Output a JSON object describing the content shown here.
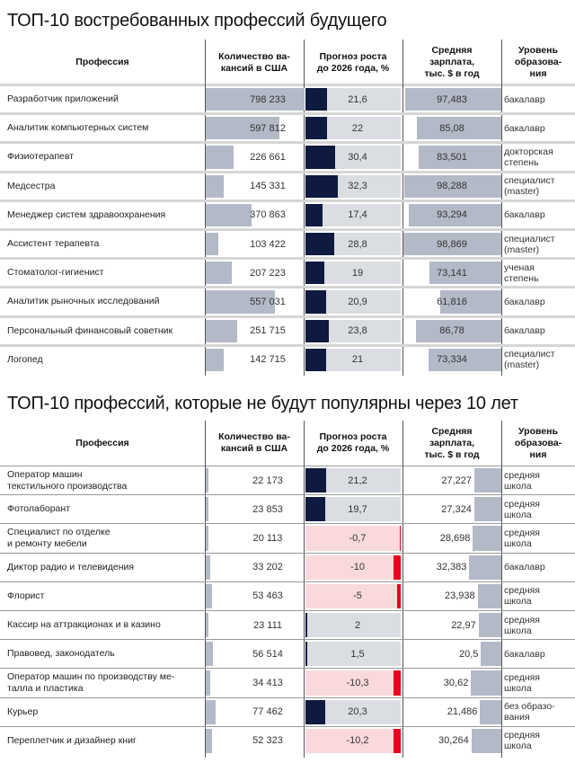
{
  "colors": {
    "vacancy_bar": "#b3b9c6",
    "growth_pos": "#0e1a3f",
    "growth_track": "#dadde2",
    "growth_neg": "#e8001c",
    "growth_neg_track": "#f9d9dc",
    "salary_bar": "#b3b9c6",
    "sep_top": "#d6d6d6",
    "sep_bottom": "#999999"
  },
  "headers": {
    "profession": "Профессия",
    "vacancies": "Количество ва-\nкансий в США",
    "growth": "Прогноз роста\nдо 2026 года, %",
    "salary": "Средняя\nзарплата,\nтыс. $ в год",
    "education": "Уровень\nобразова-\nния"
  },
  "chart_data": [
    {
      "type": "table",
      "title": "ТОП-10 востребованных профессий будущего",
      "columns": [
        "Профессия",
        "Количество вакансий в США",
        "Прогноз роста до 2026 года, %",
        "Средняя зарплата, тыс. $ в год",
        "Уровень образования"
      ],
      "rows": [
        {
          "profession": "Разработчик приложений",
          "vacancies": 798233,
          "vacancies_label": "798 233",
          "growth": 21.6,
          "growth_label": "21,6",
          "salary": 97.483,
          "salary_label": "97,483",
          "education": "бакалавр"
        },
        {
          "profession": "Аналитик компьютерных систем",
          "vacancies": 597812,
          "vacancies_label": "597 812",
          "growth": 22,
          "growth_label": "22",
          "salary": 85.08,
          "salary_label": "85,08",
          "education": "бакалавр"
        },
        {
          "profession": "Физиотерапевт",
          "vacancies": 226661,
          "vacancies_label": "226 661",
          "growth": 30.4,
          "growth_label": "30,4",
          "salary": 83.501,
          "salary_label": "83,501",
          "education": "докторская\nстепень"
        },
        {
          "profession": "Медсестра",
          "vacancies": 145331,
          "vacancies_label": "145 331",
          "growth": 32.3,
          "growth_label": "32,3",
          "salary": 98.288,
          "salary_label": "98,288",
          "education": "специалист\n(master)"
        },
        {
          "profession": "Менеджер систем здравоохранения",
          "vacancies": 370863,
          "vacancies_label": "370 863",
          "growth": 17.4,
          "growth_label": "17,4",
          "salary": 93.294,
          "salary_label": "93,294",
          "education": "бакалавр"
        },
        {
          "profession": "Ассистент терапевта",
          "vacancies": 103422,
          "vacancies_label": "103 422",
          "growth": 28.8,
          "growth_label": "28,8",
          "salary": 98.869,
          "salary_label": "98,869",
          "education": "специалист\n(master)"
        },
        {
          "profession": "Стоматолог-гигиенист",
          "vacancies": 207223,
          "vacancies_label": "207 223",
          "growth": 19,
          "growth_label": "19",
          "salary": 73.141,
          "salary_label": "73,141",
          "education": "ученая\nстепень"
        },
        {
          "profession": "Аналитик рыночных исследований",
          "vacancies": 557031,
          "vacancies_label": "557 031",
          "growth": 20.9,
          "growth_label": "20,9",
          "salary": 61.816,
          "salary_label": "61,816",
          "education": "бакалавр"
        },
        {
          "profession": "Персональный финансовый советник",
          "vacancies": 251715,
          "vacancies_label": "251 715",
          "growth": 23.8,
          "growth_label": "23,8",
          "salary": 86.78,
          "salary_label": "86,78",
          "education": "бакалавр"
        },
        {
          "profession": "Логопед",
          "vacancies": 142715,
          "vacancies_label": "142 715",
          "growth": 21,
          "growth_label": "21",
          "salary": 73.334,
          "salary_label": "73,334",
          "education": "специалист\n(master)"
        }
      ]
    },
    {
      "type": "table",
      "title": "ТОП-10 профессий, которые не будут популярны через 10 лет",
      "columns": [
        "Профессия",
        "Количество вакансий в США",
        "Прогноз роста до 2026 года, %",
        "Средняя зарплата, тыс. $ в год",
        "Уровень образования"
      ],
      "rows": [
        {
          "profession": "Оператор машин\nтекстильного производства",
          "vacancies": 22173,
          "vacancies_label": "22 173",
          "growth": 21.2,
          "growth_label": "21,2",
          "salary": 27.227,
          "salary_label": "27,227",
          "education": "средняя\nшкола"
        },
        {
          "profession": "Фотолаборант",
          "vacancies": 23853,
          "vacancies_label": "23 853",
          "growth": 19.7,
          "growth_label": "19,7",
          "salary": 27.324,
          "salary_label": "27,324",
          "education": "средняя\nшкола"
        },
        {
          "profession": "Специалист по отделке\nи ремонту мебели",
          "vacancies": 20113,
          "vacancies_label": "20 113",
          "growth": -0.7,
          "growth_label": "-0,7",
          "salary": 28.698,
          "salary_label": "28,698",
          "education": "средняя\nшкола"
        },
        {
          "profession": "Диктор радио и телевидения",
          "vacancies": 33202,
          "vacancies_label": "33 202",
          "growth": -10,
          "growth_label": "-10",
          "salary": 32.383,
          "salary_label": "32,383",
          "education": "бакалавр"
        },
        {
          "profession": "Флорист",
          "vacancies": 53463,
          "vacancies_label": "53 463",
          "growth": -5,
          "growth_label": "-5",
          "salary": 23.938,
          "salary_label": "23,938",
          "education": "средняя\nшкола"
        },
        {
          "profession": "Кассир на аттракционах и в казино",
          "vacancies": 23111,
          "vacancies_label": "23 111",
          "growth": 2,
          "growth_label": "2",
          "salary": 22.97,
          "salary_label": "22,97",
          "education": "средняя\nшкола"
        },
        {
          "profession": "Правовед, законодатель",
          "vacancies": 56514,
          "vacancies_label": "56 514",
          "growth": 1.5,
          "growth_label": "1,5",
          "salary": 20.5,
          "salary_label": "20,5",
          "education": "бакалавр"
        },
        {
          "profession": "Оператор машин по производству ме-\nталла и пластика",
          "vacancies": 34413,
          "vacancies_label": "34 413",
          "growth": -10.3,
          "growth_label": "-10,3",
          "salary": 30.62,
          "salary_label": "30,62",
          "education": "средняя\nшкола"
        },
        {
          "profession": "Курьер",
          "vacancies": 77462,
          "vacancies_label": "77 462",
          "growth": 20.3,
          "growth_label": "20,3",
          "salary": 21.486,
          "salary_label": "21,486",
          "education": "без образо-\nвания"
        },
        {
          "profession": "Переплетчик и дизайнер книг",
          "vacancies": 52323,
          "vacancies_label": "52 323",
          "growth": -10.2,
          "growth_label": "-10,2",
          "salary": 30.264,
          "salary_label": "30,264",
          "education": "средняя\nшкола"
        }
      ]
    }
  ]
}
